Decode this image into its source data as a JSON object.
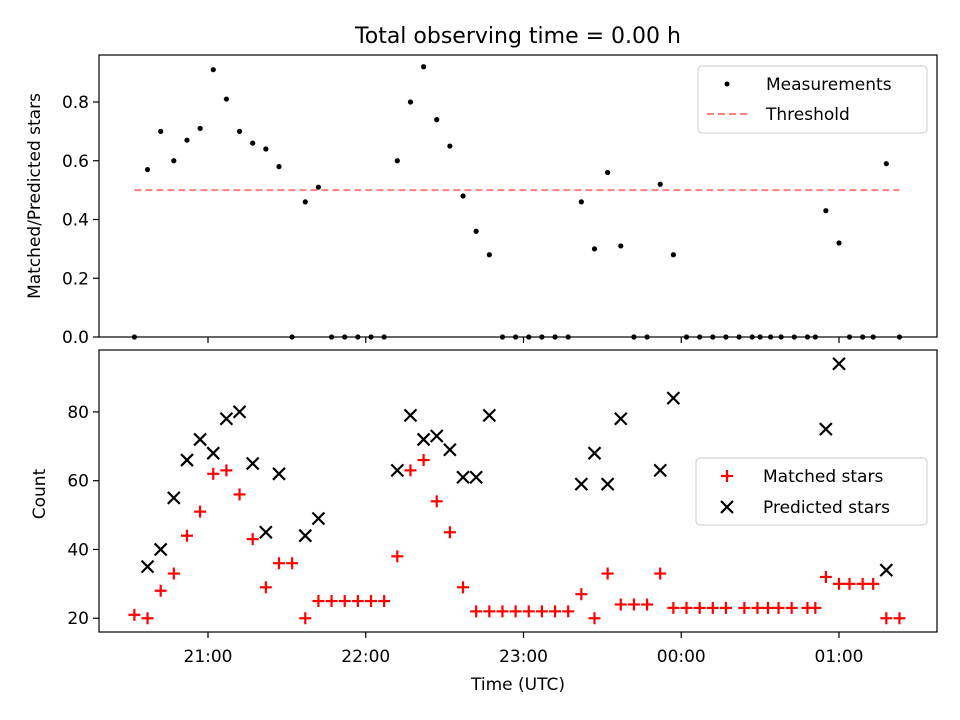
{
  "chart_data": {
    "title": "Total observing time = 0.00 h",
    "xlabel": "Time (UTC)",
    "x_ticks": [
      "21:00",
      "22:00",
      "23:00",
      "00:00",
      "01:00"
    ],
    "panels": [
      {
        "type": "scatter",
        "ylabel": "Matched/Predicted stars",
        "ylim": [
          0,
          0.96
        ],
        "y_ticks": [
          "0.0",
          "0.2",
          "0.4",
          "0.6",
          "0.8"
        ],
        "legend": {
          "placement": "top-right",
          "entries": [
            "Measurements",
            "Threshold"
          ]
        },
        "series": [
          {
            "name": "Measurements",
            "color": "#000000",
            "marker": "dot",
            "points": [
              [
                "20:32",
                0.0
              ],
              [
                "20:37",
                0.57
              ],
              [
                "20:42",
                0.7
              ],
              [
                "20:47",
                0.6
              ],
              [
                "20:52",
                0.67
              ],
              [
                "20:57",
                0.71
              ],
              [
                "21:02",
                0.91
              ],
              [
                "21:07",
                0.81
              ],
              [
                "21:12",
                0.7
              ],
              [
                "21:17",
                0.66
              ],
              [
                "21:22",
                0.64
              ],
              [
                "21:27",
                0.58
              ],
              [
                "21:32",
                0.0
              ],
              [
                "21:37",
                0.46
              ],
              [
                "21:42",
                0.51
              ],
              [
                "21:47",
                0.0
              ],
              [
                "21:52",
                0.0
              ],
              [
                "21:57",
                0.0
              ],
              [
                "22:02",
                0.0
              ],
              [
                "22:07",
                0.0
              ],
              [
                "22:12",
                0.6
              ],
              [
                "22:17",
                0.8
              ],
              [
                "22:22",
                0.92
              ],
              [
                "22:27",
                0.74
              ],
              [
                "22:32",
                0.65
              ],
              [
                "22:37",
                0.48
              ],
              [
                "22:42",
                0.36
              ],
              [
                "22:47",
                0.28
              ],
              [
                "22:52",
                0.0
              ],
              [
                "22:57",
                0.0
              ],
              [
                "23:02",
                0.0
              ],
              [
                "23:07",
                0.0
              ],
              [
                "23:12",
                0.0
              ],
              [
                "23:17",
                0.0
              ],
              [
                "23:22",
                0.46
              ],
              [
                "23:27",
                0.3
              ],
              [
                "23:32",
                0.56
              ],
              [
                "23:37",
                0.31
              ],
              [
                "23:42",
                0.0
              ],
              [
                "23:47",
                0.0
              ],
              [
                "23:52",
                0.52
              ],
              [
                "23:57",
                0.28
              ],
              [
                "00:02",
                0.0
              ],
              [
                "00:07",
                0.0
              ],
              [
                "00:12",
                0.0
              ],
              [
                "00:17",
                0.0
              ],
              [
                "00:22",
                0.0
              ],
              [
                "00:27",
                0.0
              ],
              [
                "00:30",
                0.0
              ],
              [
                "00:34",
                0.0
              ],
              [
                "00:38",
                0.0
              ],
              [
                "00:43",
                0.0
              ],
              [
                "00:48",
                0.0
              ],
              [
                "00:51",
                0.0
              ],
              [
                "00:55",
                0.43
              ],
              [
                "01:00",
                0.32
              ],
              [
                "01:04",
                0.0
              ],
              [
                "01:09",
                0.0
              ],
              [
                "01:13",
                0.0
              ],
              [
                "01:18",
                0.59
              ],
              [
                "01:23",
                0.0
              ]
            ]
          },
          {
            "name": "Threshold",
            "color": "#ff7f7f",
            "style": "dashed",
            "points": [
              [
                "20:32",
                0.5
              ],
              [
                "01:23",
                0.5
              ]
            ]
          }
        ]
      },
      {
        "type": "scatter",
        "ylabel": "Count",
        "ylim": [
          16,
          98
        ],
        "y_ticks": [
          "20",
          "40",
          "60",
          "80"
        ],
        "legend": {
          "placement": "center-right",
          "entries": [
            "Matched stars",
            "Predicted stars"
          ]
        },
        "series": [
          {
            "name": "Matched stars",
            "color": "#ff0000",
            "marker": "plus",
            "points": [
              [
                "20:32",
                21
              ],
              [
                "20:37",
                20
              ],
              [
                "20:42",
                28
              ],
              [
                "20:47",
                33
              ],
              [
                "20:52",
                44
              ],
              [
                "20:57",
                51
              ],
              [
                "21:02",
                62
              ],
              [
                "21:07",
                63
              ],
              [
                "21:12",
                56
              ],
              [
                "21:17",
                43
              ],
              [
                "21:22",
                29
              ],
              [
                "21:27",
                36
              ],
              [
                "21:32",
                36
              ],
              [
                "21:37",
                20
              ],
              [
                "21:42",
                25
              ],
              [
                "21:47",
                25
              ],
              [
                "21:52",
                25
              ],
              [
                "21:57",
                25
              ],
              [
                "22:02",
                25
              ],
              [
                "22:07",
                25
              ],
              [
                "22:12",
                38
              ],
              [
                "22:17",
                63
              ],
              [
                "22:22",
                66
              ],
              [
                "22:27",
                54
              ],
              [
                "22:32",
                45
              ],
              [
                "22:37",
                29
              ],
              [
                "22:42",
                22
              ],
              [
                "22:47",
                22
              ],
              [
                "22:52",
                22
              ],
              [
                "22:57",
                22
              ],
              [
                "23:02",
                22
              ],
              [
                "23:07",
                22
              ],
              [
                "23:12",
                22
              ],
              [
                "23:17",
                22
              ],
              [
                "23:22",
                27
              ],
              [
                "23:27",
                20
              ],
              [
                "23:32",
                33
              ],
              [
                "23:37",
                24
              ],
              [
                "23:42",
                24
              ],
              [
                "23:47",
                24
              ],
              [
                "23:52",
                33
              ],
              [
                "23:57",
                23
              ],
              [
                "00:02",
                23
              ],
              [
                "00:07",
                23
              ],
              [
                "00:12",
                23
              ],
              [
                "00:17",
                23
              ],
              [
                "00:24",
                23
              ],
              [
                "00:29",
                23
              ],
              [
                "00:33",
                23
              ],
              [
                "00:37",
                23
              ],
              [
                "00:42",
                23
              ],
              [
                "00:48",
                23
              ],
              [
                "00:51",
                23
              ],
              [
                "00:55",
                32
              ],
              [
                "01:00",
                30
              ],
              [
                "01:04",
                30
              ],
              [
                "01:09",
                30
              ],
              [
                "01:13",
                30
              ],
              [
                "01:18",
                20
              ],
              [
                "01:23",
                20
              ]
            ]
          },
          {
            "name": "Predicted stars",
            "color": "#000000",
            "marker": "x",
            "points": [
              [
                "20:37",
                35
              ],
              [
                "20:42",
                40
              ],
              [
                "20:47",
                55
              ],
              [
                "20:52",
                66
              ],
              [
                "20:57",
                72
              ],
              [
                "21:02",
                68
              ],
              [
                "21:07",
                78
              ],
              [
                "21:12",
                80
              ],
              [
                "21:17",
                65
              ],
              [
                "21:22",
                45
              ],
              [
                "21:27",
                62
              ],
              [
                "21:37",
                44
              ],
              [
                "21:42",
                49
              ],
              [
                "22:12",
                63
              ],
              [
                "22:17",
                79
              ],
              [
                "22:22",
                72
              ],
              [
                "22:27",
                73
              ],
              [
                "22:32",
                69
              ],
              [
                "22:37",
                61
              ],
              [
                "22:42",
                61
              ],
              [
                "22:47",
                79
              ],
              [
                "23:22",
                59
              ],
              [
                "23:27",
                68
              ],
              [
                "23:32",
                59
              ],
              [
                "23:37",
                78
              ],
              [
                "23:52",
                63
              ],
              [
                "23:57",
                84
              ],
              [
                "00:55",
                75
              ],
              [
                "01:00",
                94
              ],
              [
                "01:18",
                34
              ]
            ]
          }
        ]
      }
    ]
  }
}
